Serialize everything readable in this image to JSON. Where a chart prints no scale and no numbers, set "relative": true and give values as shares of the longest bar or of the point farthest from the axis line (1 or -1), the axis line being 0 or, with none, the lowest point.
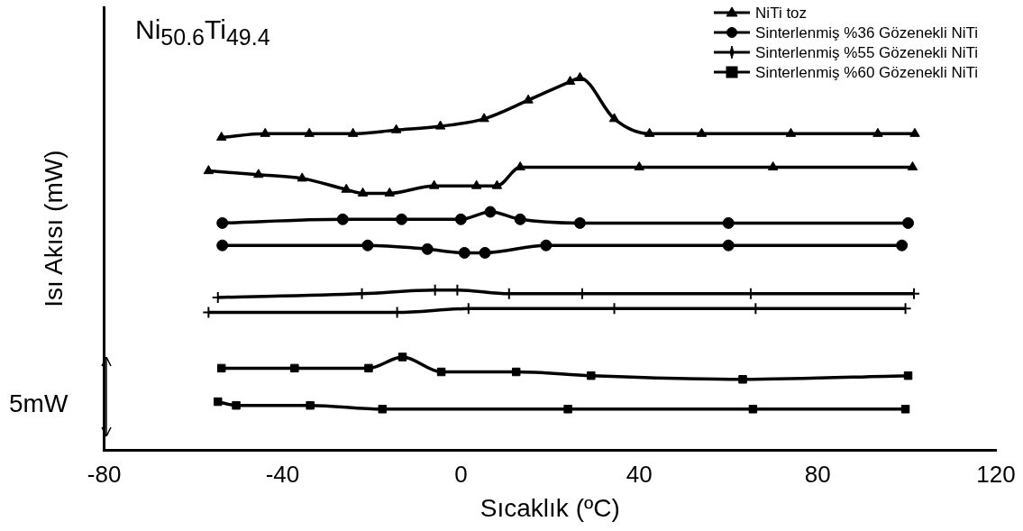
{
  "chart_data": {
    "type": "line",
    "title": "Ni$_{50.6}$Ti$_{49.4}$",
    "xlabel": "Sıcaklık (ºC)",
    "ylabel": "Isı Akısı (mW)",
    "relative": true,
    "xlim": [
      -80,
      120
    ],
    "xticks": [
      -80,
      -40,
      0,
      40,
      80,
      120
    ],
    "legend": "top right",
    "grid": false,
    "line_style": "solid",
    "annotations": [
      "5mW"
    ],
    "series": [
      {
        "name": "NiTi toz",
        "color": "#000000",
        "marker": "triangle",
        "x": [
          -53.7,
          -43.9,
          -34.0,
          -24.2,
          -14.5,
          -4.6,
          5.2,
          15.1,
          24.5,
          26.7,
          34.4,
          42.3,
          54,
          74,
          93.5,
          101.8
        ],
        "values": [
          0.84,
          0.85,
          0.85,
          0.85,
          0.86,
          0.87,
          0.89,
          0.94,
          0.99,
          1.0,
          0.89,
          0.85,
          0.85,
          0.85,
          0.85,
          0.85
        ]
      },
      {
        "color": "#000000",
        "marker": "triangle",
        "x": [
          -56.6,
          -45.4,
          -35.6,
          -25.7,
          -22.0,
          -16.0,
          -6.0,
          3.5,
          8.1,
          13.3,
          40,
          70,
          101.3
        ],
        "values": [
          0.75,
          0.74,
          0.73,
          0.7,
          0.69,
          0.69,
          0.71,
          0.71,
          0.71,
          0.76,
          0.76,
          0.76,
          0.76
        ]
      },
      {
        "name": "Sinterlenmiş %36 Gözenekli NiTi",
        "color": "#000000",
        "marker": "circle",
        "x": [
          -53.5,
          -26.5,
          -13.3,
          0,
          6.6,
          13.3,
          26.7,
          60,
          100.3
        ],
        "values": [
          0.61,
          0.62,
          0.62,
          0.62,
          0.64,
          0.62,
          0.61,
          0.61,
          0.61
        ]
      },
      {
        "color": "#000000",
        "marker": "circle",
        "x": [
          -53.5,
          -20.9,
          -7.5,
          0.8,
          5.4,
          19.1,
          60,
          98.9
        ],
        "values": [
          0.55,
          0.55,
          0.54,
          0.53,
          0.53,
          0.55,
          0.55,
          0.55
        ]
      },
      {
        "name": "Sinterlenmiş %55 Gözenekli NiTi",
        "color": "#000000",
        "marker": "cross",
        "x": [
          -54.5,
          -22.2,
          -5.8,
          -0.8,
          10.8,
          27.2,
          65,
          101.6
        ],
        "values": [
          0.41,
          0.42,
          0.43,
          0.43,
          0.42,
          0.42,
          0.42,
          0.42
        ]
      },
      {
        "color": "#000000",
        "marker": "cross",
        "x": [
          -56.6,
          -14.3,
          1.7,
          34.4,
          66.1,
          99.7
        ],
        "values": [
          0.37,
          0.37,
          0.38,
          0.38,
          0.38,
          0.38
        ]
      },
      {
        "name": "Sinterlenmiş %60 Gözenekli NiTi",
        "color": "#000000",
        "marker": "square",
        "x": [
          -53.7,
          -37.3,
          -20.7,
          -13.1,
          -4.4,
          12.4,
          29.2,
          63.2,
          100.3
        ],
        "values": [
          0.22,
          0.22,
          0.22,
          0.25,
          0.21,
          0.21,
          0.2,
          0.19,
          0.2
        ]
      },
      {
        "color": "#000000",
        "marker": "square",
        "x": [
          -54.5,
          -50.4,
          -33.8,
          -17.6,
          24,
          65.5,
          99.7
        ],
        "values": [
          0.13,
          0.12,
          0.12,
          0.11,
          0.11,
          0.11,
          0.11
        ]
      }
    ]
  }
}
